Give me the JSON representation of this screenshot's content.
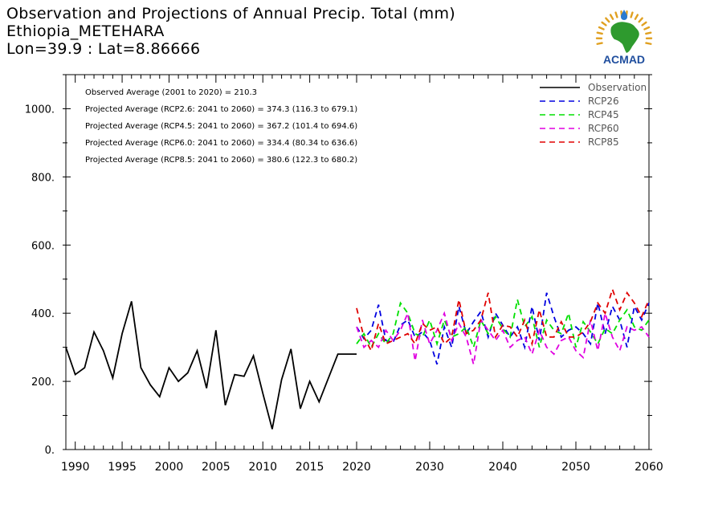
{
  "header": {
    "title": "Observation and Projections of Annual Precip. Total (mm)",
    "station": "Ethiopia_METEHARA",
    "coords": "Lon=39.9 : Lat=8.86666"
  },
  "logo": {
    "text": "ACMAD",
    "colors": {
      "africa": "#2e9a2e",
      "text": "#1f4e9e",
      "rays": "#e0a020",
      "drop": "#2a7ad0"
    }
  },
  "chart_data": {
    "type": "line",
    "ylim": [
      0,
      1100
    ],
    "yticks": [
      0,
      200,
      400,
      600,
      800,
      1000
    ],
    "ytick_labels": [
      "0.",
      "200.",
      "400.",
      "600.",
      "800.",
      "1000."
    ],
    "xticks_obs": [
      1990,
      1995,
      2000,
      2005,
      2010,
      2015,
      2020
    ],
    "xticks_proj": [
      2030,
      2040,
      2050,
      2060
    ],
    "annotations": [
      "Observed Average (2001 to 2020) = 210.3",
      "Projected Average (RCP2.6: 2041 to 2060) = 374.3 (116.3 to 679.1)",
      "Projected Average (RCP4.5: 2041 to 2060) = 367.2 (101.4 to 694.6)",
      "Projected Average (RCP6.0: 2041 to 2060) = 334.4 (80.34 to 636.6)",
      "Projected Average (RCP8.5: 2041 to 2060) = 380.6 (122.3 to 680.2)"
    ],
    "legend_position": "top-right",
    "observation": {
      "name": "Observation",
      "color": "#000000",
      "x": [
        1989,
        1990,
        1991,
        1992,
        1993,
        1994,
        1995,
        1996,
        1997,
        1998,
        1999,
        2000,
        2001,
        2002,
        2003,
        2004,
        2005,
        2006,
        2007,
        2008,
        2009,
        2010,
        2011,
        2012,
        2013,
        2014,
        2015,
        2016,
        2017,
        2018,
        2019,
        2020
      ],
      "values": [
        300,
        220,
        240,
        345,
        290,
        210,
        340,
        435,
        240,
        190,
        155,
        240,
        200,
        225,
        290,
        180,
        350,
        130,
        220,
        215,
        275,
        165,
        60,
        205,
        295,
        120,
        200,
        140,
        210,
        280,
        280,
        280
      ]
    },
    "projection_x": [
      2020,
      2021,
      2022,
      2023,
      2024,
      2025,
      2026,
      2027,
      2028,
      2029,
      2030,
      2031,
      2032,
      2033,
      2034,
      2035,
      2036,
      2037,
      2038,
      2039,
      2040,
      2041,
      2042,
      2043,
      2044,
      2045,
      2046,
      2047,
      2048,
      2049,
      2050,
      2051,
      2052,
      2053,
      2054,
      2055,
      2056,
      2057,
      2058,
      2059,
      2060
    ],
    "series": [
      {
        "name": "RCP26",
        "color": "#0000e0",
        "values": [
          360,
          325,
          350,
          425,
          320,
          315,
          365,
          380,
          330,
          345,
          320,
          250,
          360,
          300,
          420,
          340,
          375,
          405,
          330,
          400,
          365,
          330,
          360,
          300,
          420,
          320,
          460,
          390,
          330,
          350,
          360,
          340,
          310,
          430,
          340,
          420,
          380,
          300,
          420,
          380,
          430
        ]
      },
      {
        "name": "RCP45",
        "color": "#00e000",
        "values": [
          310,
          340,
          300,
          340,
          310,
          340,
          430,
          400,
          340,
          330,
          380,
          310,
          380,
          330,
          340,
          360,
          300,
          380,
          340,
          390,
          355,
          330,
          440,
          360,
          390,
          300,
          380,
          350,
          340,
          400,
          300,
          375,
          345,
          310,
          355,
          340,
          380,
          410,
          360,
          350,
          380
        ]
      },
      {
        "name": "RCP60",
        "color": "#e000e0",
        "values": [
          360,
          300,
          320,
          300,
          350,
          320,
          350,
          400,
          260,
          380,
          310,
          350,
          400,
          320,
          370,
          330,
          250,
          380,
          350,
          320,
          350,
          300,
          320,
          330,
          280,
          350,
          300,
          280,
          320,
          330,
          290,
          270,
          380,
          290,
          400,
          330,
          290,
          360,
          350,
          360,
          330
        ]
      },
      {
        "name": "RCP85",
        "color": "#e00000",
        "values": [
          415,
          330,
          290,
          370,
          310,
          320,
          330,
          340,
          310,
          370,
          350,
          360,
          310,
          330,
          440,
          340,
          350,
          380,
          460,
          330,
          365,
          360,
          330,
          380,
          310,
          410,
          330,
          330,
          375,
          330,
          330,
          345,
          375,
          430,
          400,
          470,
          410,
          460,
          430,
          390,
          440
        ]
      }
    ]
  }
}
